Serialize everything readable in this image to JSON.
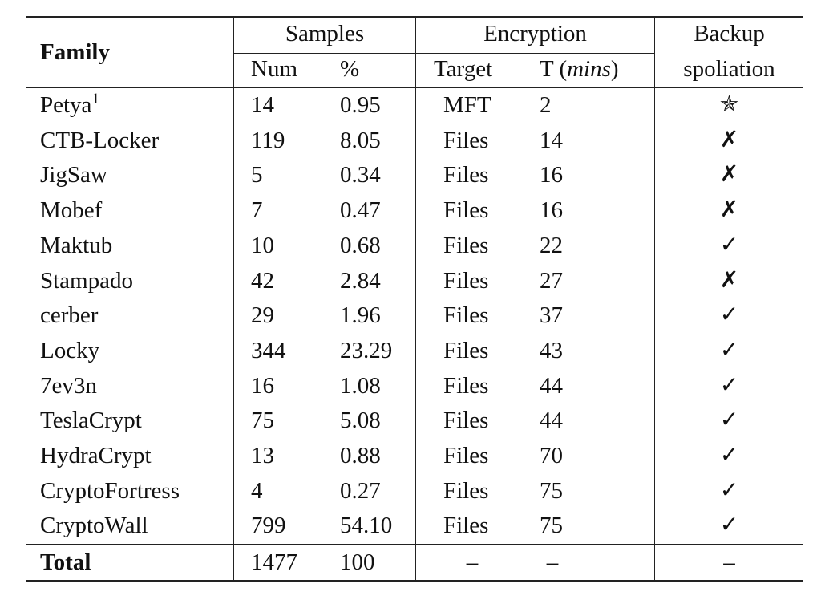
{
  "header": {
    "family": "Family",
    "samples": "Samples",
    "encryption": "Encryption",
    "backup_line1": "Backup",
    "backup_line2": "spoliation",
    "num": "Num",
    "pct": "%",
    "target": "Target",
    "time_prefix": "T (",
    "time_unit": "mins",
    "time_suffix": ")"
  },
  "rows": [
    {
      "family": "Petya",
      "footnote": "1",
      "num": "14",
      "pct": "0.95",
      "target": "MFT",
      "time": "2",
      "backup": "✯",
      "backup_icon": "star-icon"
    },
    {
      "family": "CTB-Locker",
      "num": "119",
      "pct": "8.05",
      "target": "Files",
      "time": "14",
      "backup": "✗",
      "backup_icon": "cross-icon"
    },
    {
      "family": "JigSaw",
      "num": "5",
      "pct": "0.34",
      "target": "Files",
      "time": "16",
      "backup": "✗",
      "backup_icon": "cross-icon"
    },
    {
      "family": "Mobef",
      "num": "7",
      "pct": "0.47",
      "target": "Files",
      "time": "16",
      "backup": "✗",
      "backup_icon": "cross-icon"
    },
    {
      "family": "Maktub",
      "num": "10",
      "pct": "0.68",
      "target": "Files",
      "time": "22",
      "backup": "✓",
      "backup_icon": "check-icon"
    },
    {
      "family": "Stampado",
      "num": "42",
      "pct": "2.84",
      "target": "Files",
      "time": "27",
      "backup": "✗",
      "backup_icon": "cross-icon"
    },
    {
      "family": "cerber",
      "num": "29",
      "pct": "1.96",
      "target": "Files",
      "time": "37",
      "backup": "✓",
      "backup_icon": "check-icon"
    },
    {
      "family": "Locky",
      "num": "344",
      "pct": "23.29",
      "target": "Files",
      "time": "43",
      "backup": "✓",
      "backup_icon": "check-icon"
    },
    {
      "family": "7ev3n",
      "num": "16",
      "pct": "1.08",
      "target": "Files",
      "time": "44",
      "backup": "✓",
      "backup_icon": "check-icon"
    },
    {
      "family": "TeslaCrypt",
      "num": "75",
      "pct": "5.08",
      "target": "Files",
      "time": "44",
      "backup": "✓",
      "backup_icon": "check-icon"
    },
    {
      "family": "HydraCrypt",
      "num": "13",
      "pct": "0.88",
      "target": "Files",
      "time": "70",
      "backup": "✓",
      "backup_icon": "check-icon"
    },
    {
      "family": "CryptoFortress",
      "num": "4",
      "pct": "0.27",
      "target": "Files",
      "time": "75",
      "backup": "✓",
      "backup_icon": "check-icon"
    },
    {
      "family": "CryptoWall",
      "num": "799",
      "pct": "54.10",
      "target": "Files",
      "time": "75",
      "backup": "✓",
      "backup_icon": "check-icon"
    }
  ],
  "total": {
    "family": "Total",
    "num": "1477",
    "pct": "100",
    "target": "–",
    "time": "–",
    "backup": "–"
  }
}
